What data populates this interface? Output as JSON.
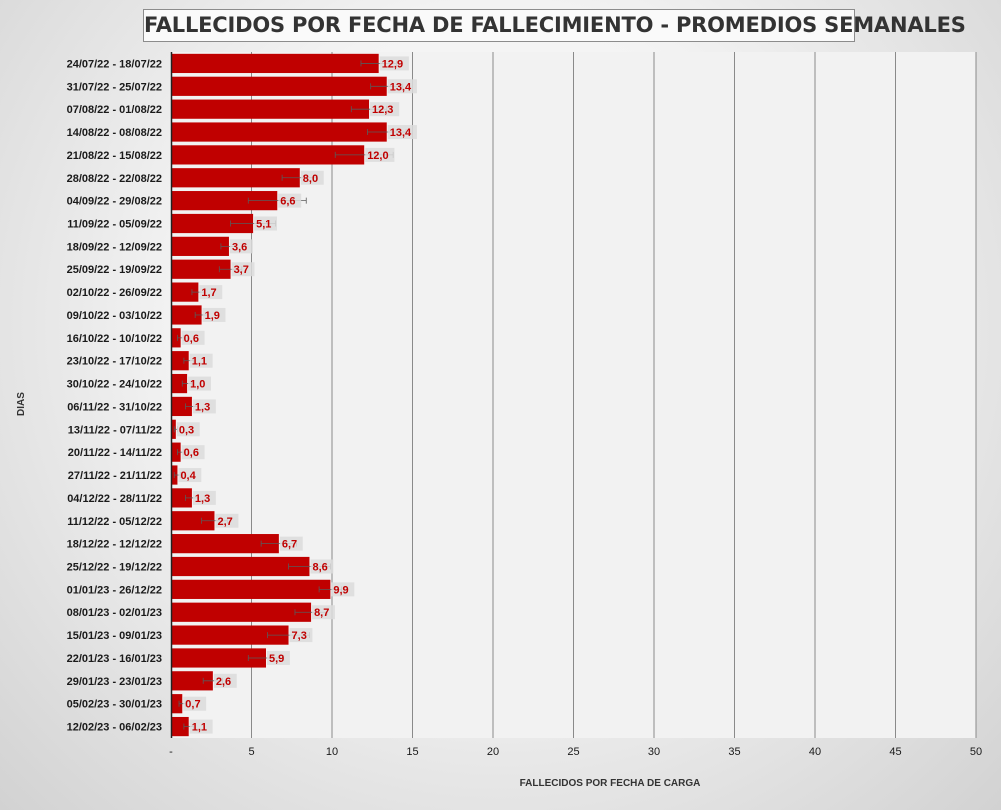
{
  "chart_data": {
    "type": "bar",
    "orientation": "horizontal",
    "title": "FALLECIDOS POR FECHA DE FALLECIMIENTO - PROMEDIOS SEMANALES",
    "xlabel": "FALLECIDOS POR FECHA DE CARGA",
    "ylabel": "DIAS",
    "xlim": [
      0,
      50
    ],
    "x_ticks": [
      "-",
      "5",
      "10",
      "15",
      "20",
      "25",
      "30",
      "35",
      "40",
      "45",
      "50"
    ],
    "grid": "vertical",
    "bar_color": "#c00000",
    "error_bars": true,
    "categories": [
      "24/07/22 - 18/07/22",
      "31/07/22 - 25/07/22",
      "07/08/22 - 01/08/22",
      "14/08/22 - 08/08/22",
      "21/08/22 - 15/08/22",
      "28/08/22 - 22/08/22",
      "04/09/22 - 29/08/22",
      "11/09/22 - 05/09/22",
      "18/09/22 - 12/09/22",
      "25/09/22 - 19/09/22",
      "02/10/22 - 26/09/22",
      "09/10/22 - 03/10/22",
      "16/10/22 - 10/10/22",
      "23/10/22 - 17/10/22",
      "30/10/22 - 24/10/22",
      "06/11/22 - 31/10/22",
      "13/11/22 - 07/11/22",
      "20/11/22 - 14/11/22",
      "27/11/22 - 21/11/22",
      "04/12/22 - 28/11/22",
      "11/12/22 - 05/12/22",
      "18/12/22 - 12/12/22",
      "25/12/22 - 19/12/22",
      "01/01/23 - 26/12/22",
      "08/01/23 - 02/01/23",
      "15/01/23 - 09/01/23",
      "22/01/23 - 16/01/23",
      "29/01/23 - 23/01/23",
      "05/02/23 - 30/01/23",
      "12/02/23 - 06/02/23"
    ],
    "values": [
      12.9,
      13.4,
      12.3,
      13.4,
      12.0,
      8.0,
      6.6,
      5.1,
      3.6,
      3.7,
      1.7,
      1.9,
      0.6,
      1.1,
      1.0,
      1.3,
      0.3,
      0.6,
      0.4,
      1.3,
      2.7,
      6.7,
      8.6,
      9.9,
      8.7,
      7.3,
      5.9,
      2.6,
      0.7,
      1.1
    ],
    "labels": [
      "12,9",
      "13,4",
      "12,3",
      "13,4",
      "12,0",
      "8,0",
      "6,6",
      "5,1",
      "3,6",
      "3,7",
      "1,7",
      "1,9",
      "0,6",
      "1,1",
      "1,0",
      "1,3",
      "0,3",
      "0,6",
      "0,4",
      "1,3",
      "2,7",
      "6,7",
      "8,6",
      "9,9",
      "8,7",
      "7,3",
      "5,9",
      "2,6",
      "0,7",
      "1,1"
    ],
    "error_low": [
      11.8,
      12.4,
      11.2,
      12.2,
      10.2,
      6.9,
      4.8,
      3.7,
      3.1,
      3.0,
      1.3,
      1.5,
      0.4,
      0.8,
      0.7,
      0.9,
      0.2,
      0.4,
      0.2,
      0.9,
      1.9,
      5.6,
      7.3,
      9.2,
      7.7,
      6.0,
      4.8,
      2.0,
      0.5,
      0.8
    ],
    "error_high": [
      14.0,
      14.4,
      13.4,
      14.6,
      13.8,
      9.1,
      8.4,
      6.5,
      4.1,
      4.4,
      2.1,
      2.3,
      0.8,
      1.4,
      1.3,
      1.7,
      0.4,
      0.8,
      0.6,
      1.7,
      3.5,
      7.8,
      9.9,
      10.6,
      9.7,
      8.6,
      7.0,
      3.2,
      0.9,
      1.4
    ]
  }
}
